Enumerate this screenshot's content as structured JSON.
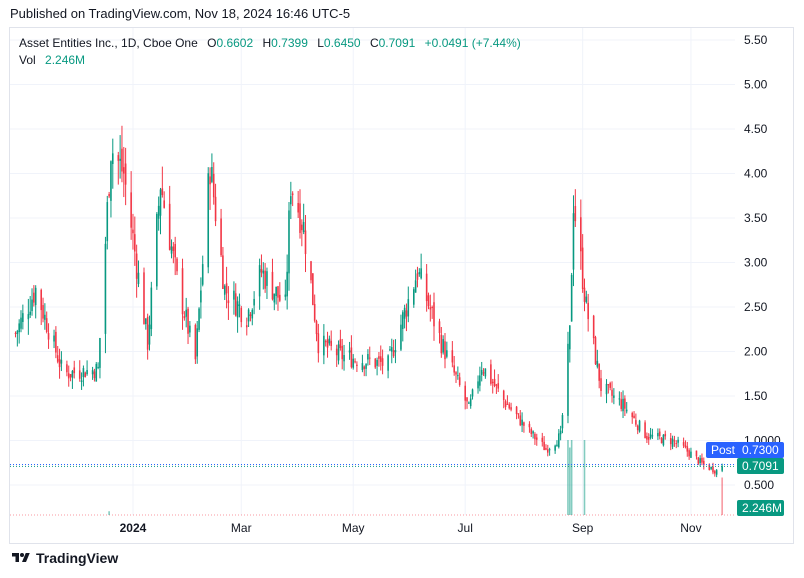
{
  "header": {
    "published": "Published on TradingView.com, Nov 18, 2024 16:46 UTC-5"
  },
  "legend": {
    "symbol": "Asset Entities Inc., 1D, Cboe One",
    "open_label": "O",
    "open": "0.6602",
    "high_label": "H",
    "high": "0.7399",
    "low_label": "L",
    "low": "0.6450",
    "close_label": "C",
    "close": "0.7091",
    "change": "+0.0491 (+7.44%)",
    "vol_label": "Vol",
    "vol": "2.246M"
  },
  "tags": {
    "post_label": "Post",
    "post_price": "0.7300",
    "last_price": "0.7091",
    "volume": "2.246M"
  },
  "footer": {
    "brand": "TradingView"
  },
  "colors": {
    "up": "#089981",
    "down": "#f23645",
    "grid": "#f0f3fa",
    "post": "#2962ff"
  },
  "chart_data": {
    "type": "candlestick",
    "y_ticks": [
      "5.50",
      "5.00",
      "4.50",
      "4.00",
      "3.50",
      "3.00",
      "2.50",
      "2.00",
      "1.50",
      "1.0000",
      "0.500"
    ],
    "ylim": [
      0.3,
      5.6
    ],
    "x_ticks": [
      "2024",
      "Mar",
      "May",
      "Jul",
      "Sep",
      "Nov"
    ],
    "x_tick_dates": [
      "2024-01-02",
      "2024-03-01",
      "2024-05-01",
      "2024-07-01",
      "2024-09-03",
      "2024-11-01"
    ],
    "xlim": [
      "2023-10-27",
      "2024-11-25"
    ],
    "approx_close_path": [
      {
        "date": "2023-10-30",
        "close": 2.2
      },
      {
        "date": "2023-11-10",
        "close": 2.7
      },
      {
        "date": "2023-11-25",
        "close": 1.75
      },
      {
        "date": "2023-12-14",
        "close": 1.8
      },
      {
        "date": "2023-12-21",
        "close": 4.3
      },
      {
        "date": "2023-12-28",
        "close": 4.0
      },
      {
        "date": "2024-01-10",
        "close": 2.1
      },
      {
        "date": "2024-01-17",
        "close": 3.9
      },
      {
        "date": "2024-01-26",
        "close": 2.8
      },
      {
        "date": "2024-02-05",
        "close": 1.9
      },
      {
        "date": "2024-02-13",
        "close": 4.1
      },
      {
        "date": "2024-02-21",
        "close": 2.7
      },
      {
        "date": "2024-03-04",
        "close": 2.4
      },
      {
        "date": "2024-03-12",
        "close": 2.9
      },
      {
        "date": "2024-03-25",
        "close": 2.5
      },
      {
        "date": "2024-03-28",
        "close": 3.9
      },
      {
        "date": "2024-04-04",
        "close": 3.4
      },
      {
        "date": "2024-04-12",
        "close": 2.1
      },
      {
        "date": "2024-04-25",
        "close": 1.95
      },
      {
        "date": "2024-05-20",
        "close": 1.85
      },
      {
        "date": "2024-06-05",
        "close": 2.9
      },
      {
        "date": "2024-06-18",
        "close": 2.1
      },
      {
        "date": "2024-06-26",
        "close": 1.7
      },
      {
        "date": "2024-07-03",
        "close": 1.35
      },
      {
        "date": "2024-07-10",
        "close": 1.85
      },
      {
        "date": "2024-07-22",
        "close": 1.45
      },
      {
        "date": "2024-08-05",
        "close": 1.1
      },
      {
        "date": "2024-08-14",
        "close": 0.9
      },
      {
        "date": "2024-08-22",
        "close": 1.05
      },
      {
        "date": "2024-08-27",
        "close": 2.2
      },
      {
        "date": "2024-08-29",
        "close": 3.7
      },
      {
        "date": "2024-09-05",
        "close": 2.5
      },
      {
        "date": "2024-09-13",
        "close": 1.6
      },
      {
        "date": "2024-09-25",
        "close": 1.4
      },
      {
        "date": "2024-10-08",
        "close": 1.05
      },
      {
        "date": "2024-10-22",
        "close": 1.0
      },
      {
        "date": "2024-11-01",
        "close": 0.85
      },
      {
        "date": "2024-11-08",
        "close": 0.72
      },
      {
        "date": "2024-11-15",
        "close": 0.66
      },
      {
        "date": "2024-11-18",
        "close": 0.7091
      }
    ],
    "volume_spikes": [
      {
        "date": "2023-12-20",
        "relative": 0.05
      },
      {
        "date": "2024-08-26",
        "relative": 1.0
      },
      {
        "date": "2024-08-27",
        "relative": 0.9
      },
      {
        "date": "2024-08-28",
        "relative": 1.0
      },
      {
        "date": "2024-09-04",
        "relative": 1.0
      },
      {
        "date": "2024-11-18",
        "relative": 0.5
      }
    ],
    "post_market_price": 0.73,
    "last_price": 0.7091,
    "grid": true
  }
}
